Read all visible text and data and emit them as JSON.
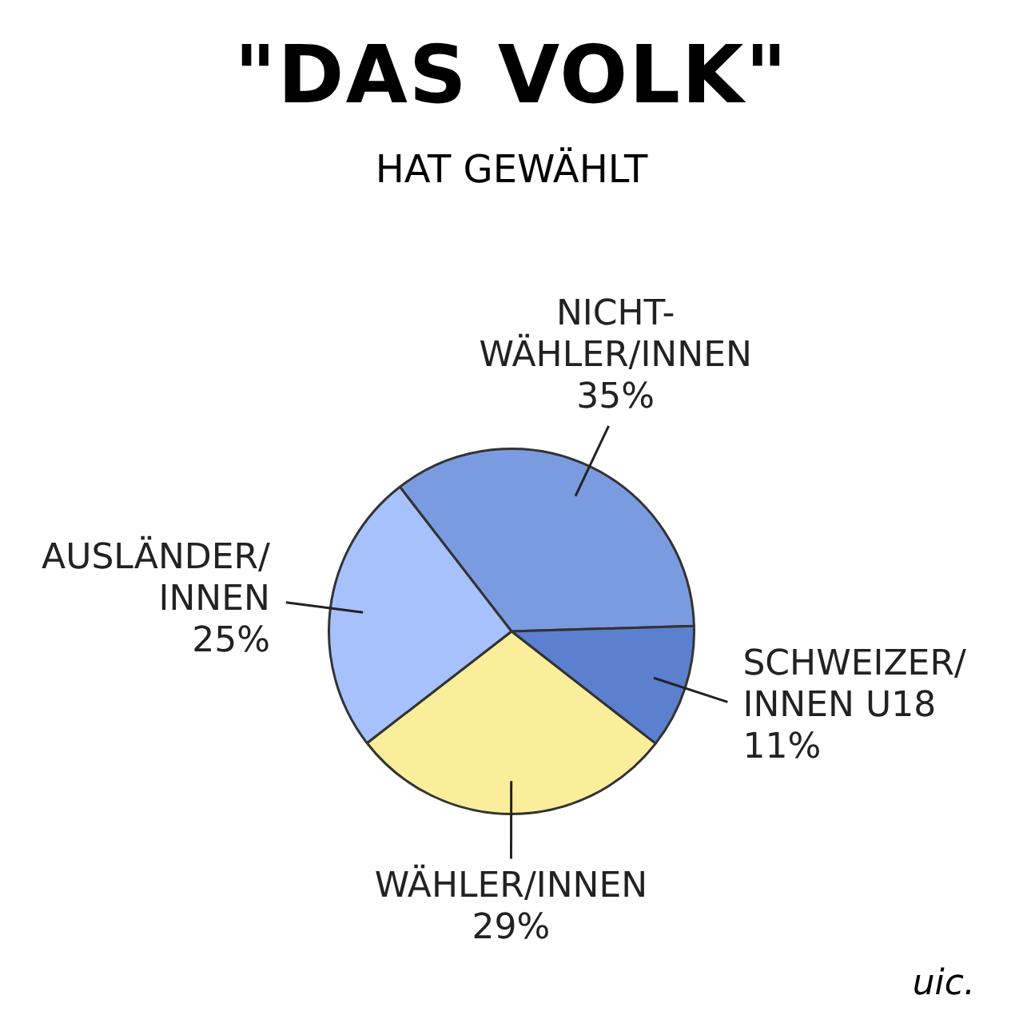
{
  "chart_data": {
    "type": "pie",
    "title": "\"DAS VOLK\"",
    "subtitle": "HAT GEWÄHLT",
    "categories": [
      "NICHT-\nWÄHLER/INNEN",
      "SCHWEIZER/\nINNEN U18",
      "WÄHLER/INNEN",
      "AUSLÄNDER/\nINNEN"
    ],
    "values": [
      35,
      11,
      29,
      25
    ],
    "value_labels": [
      "35%",
      "11%",
      "29%",
      "25%"
    ],
    "colors": [
      "#7b9be0",
      "#5b80d0",
      "#fbee9a",
      "#a6c1fb"
    ],
    "annotations": [
      "uic."
    ],
    "legend": false
  }
}
